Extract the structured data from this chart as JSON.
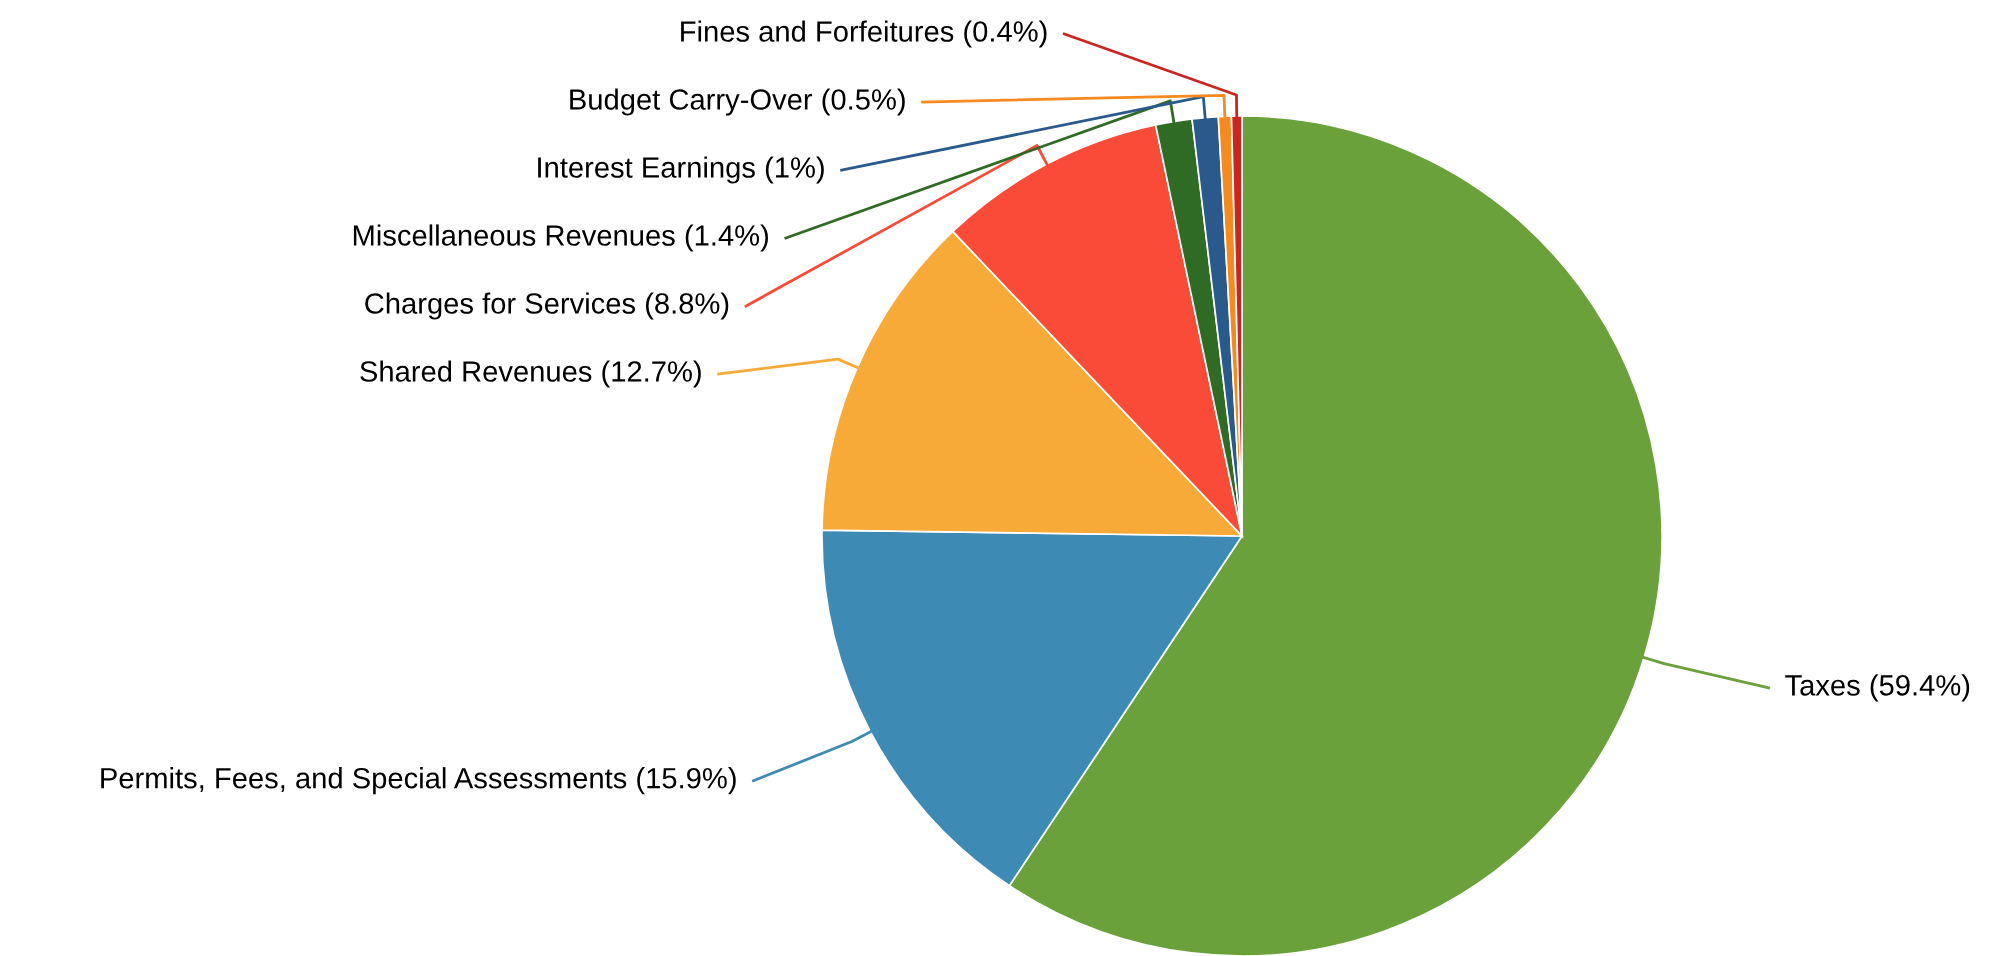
{
  "chart_data": {
    "type": "pie",
    "categories": [
      "Taxes",
      "Permits, Fees, and Special Assessments",
      "Shared Revenues",
      "Charges for Services",
      "Miscellaneous Revenues",
      "Interest Earnings",
      "Budget Carry-Over",
      "Fines and Forfeitures"
    ],
    "values": [
      59.4,
      15.9,
      12.7,
      8.8,
      1.4,
      1,
      0.5,
      0.4
    ],
    "value_labels": [
      "(59.4%)",
      "(15.9%)",
      "(12.7%)",
      "(8.8%)",
      "(1.4%)",
      "(1%)",
      "(0.5%)",
      "(0.4%)"
    ],
    "colors": [
      "#6aa13a",
      "#3d8ab5",
      "#f7aa38",
      "#f94b38",
      "#2f6b24",
      "#2a5a8c",
      "#f58a20",
      "#c8261e"
    ],
    "legend": false
  }
}
